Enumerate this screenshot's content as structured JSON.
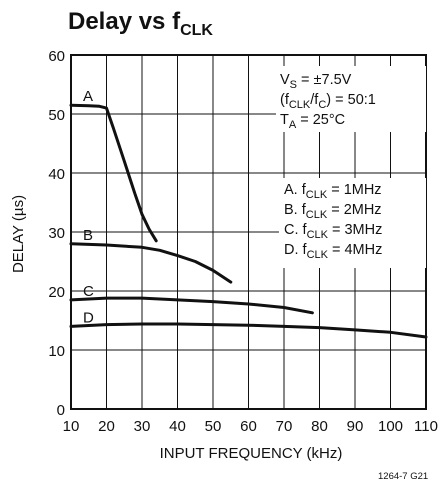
{
  "title": {
    "main": "Delay vs f",
    "sub": "CLK"
  },
  "figure_id": "1264-7 G21",
  "conditions": {
    "vs": {
      "base": "V",
      "sub": "S",
      "rest": " = ±7.5V"
    },
    "ratio": {
      "pre": "(f",
      "sub1": "CLK",
      "mid": "/f",
      "sub2": "C",
      "post": ") = 50:1"
    },
    "ta": {
      "base": "T",
      "sub": "A",
      "rest": " = 25°C"
    }
  },
  "legend": [
    {
      "prefix": "A. f",
      "sub": "CLK",
      "rest": " = 1MHz"
    },
    {
      "prefix": "B. f",
      "sub": "CLK",
      "rest": " = 2MHz"
    },
    {
      "prefix": "C. f",
      "sub": "CLK",
      "rest": " = 3MHz"
    },
    {
      "prefix": "D. f",
      "sub": "CLK",
      "rest": " = 4MHz"
    }
  ],
  "chart_data": {
    "type": "line",
    "title": "Delay vs fCLK",
    "xlabel": "INPUT FREQUENCY (kHz)",
    "ylabel": "DELAY (µs)",
    "xlim": [
      10,
      110
    ],
    "ylim": [
      0,
      60
    ],
    "xticks": [
      10,
      20,
      30,
      40,
      50,
      60,
      70,
      80,
      90,
      100,
      110
    ],
    "yticks": [
      0,
      10,
      20,
      30,
      40,
      50,
      60
    ],
    "grid": true,
    "series": [
      {
        "name": "A",
        "x": [
          10,
          15,
          18,
          20,
          22,
          25,
          28,
          30,
          32,
          34
        ],
        "y": [
          51.5,
          51.4,
          51.3,
          51.0,
          47.5,
          42.0,
          36.5,
          33.0,
          30.5,
          28.5
        ]
      },
      {
        "name": "B",
        "x": [
          10,
          20,
          30,
          35,
          40,
          45,
          50,
          55
        ],
        "y": [
          28.0,
          27.8,
          27.4,
          26.9,
          26.0,
          25.0,
          23.5,
          21.5
        ]
      },
      {
        "name": "C",
        "x": [
          10,
          20,
          30,
          40,
          50,
          60,
          70,
          78
        ],
        "y": [
          18.5,
          18.8,
          18.8,
          18.5,
          18.2,
          17.8,
          17.2,
          16.3
        ]
      },
      {
        "name": "D",
        "x": [
          10,
          20,
          30,
          40,
          50,
          60,
          70,
          80,
          90,
          100,
          110
        ],
        "y": [
          14.0,
          14.3,
          14.4,
          14.4,
          14.3,
          14.2,
          14.0,
          13.8,
          13.4,
          13.0,
          12.2
        ]
      }
    ]
  }
}
